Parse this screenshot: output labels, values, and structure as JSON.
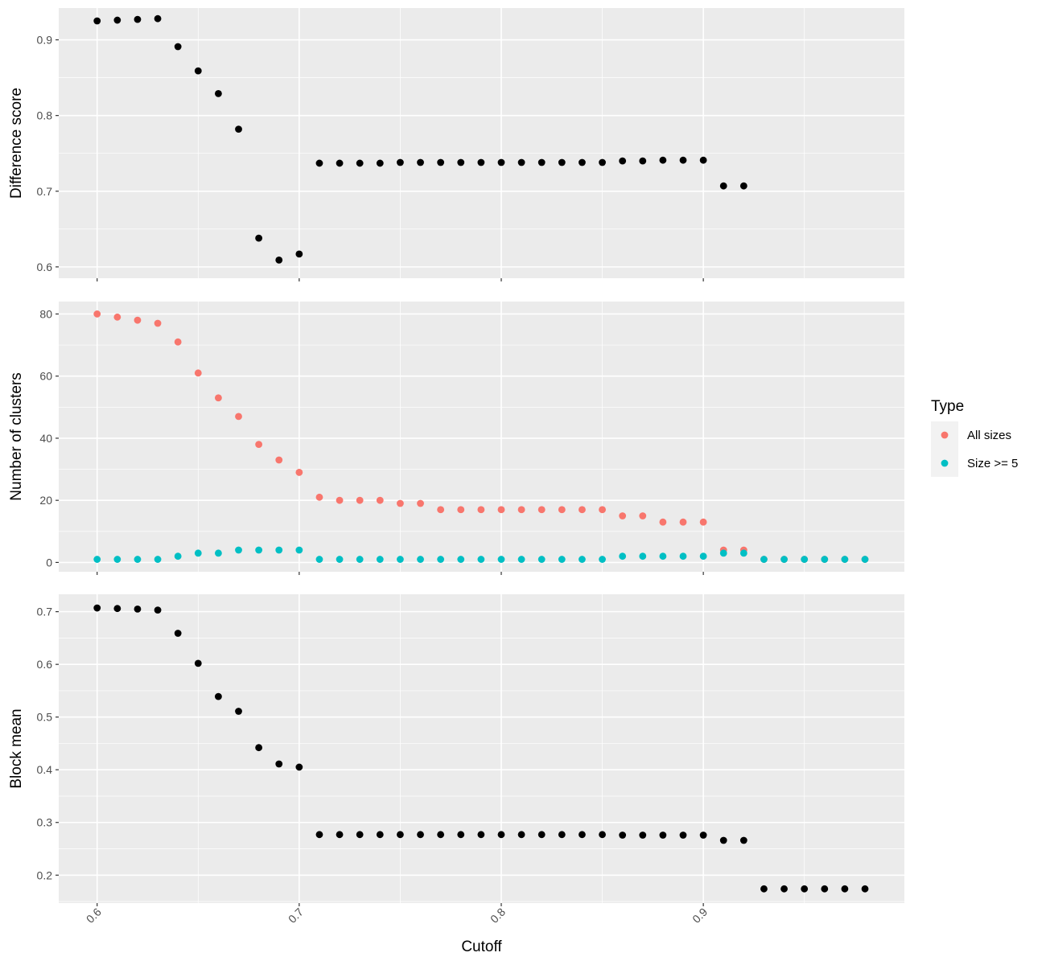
{
  "chart_data": {
    "type": "scatter",
    "xlabel": "Cutoff",
    "x_ticks": [
      "0.6",
      "0.7",
      "0.8",
      "0.9"
    ],
    "x_tick_values": [
      0.6,
      0.7,
      0.8,
      0.9
    ],
    "xlim": [
      0.581,
      0.9995
    ],
    "background": "#ebebeb",
    "grid": true,
    "legend": {
      "title": "Type",
      "placement": "right",
      "entries": [
        {
          "label": "All sizes",
          "color": "#f8766d"
        },
        {
          "label": "Size >= 5",
          "color": "#00bfc4"
        }
      ]
    },
    "panels": [
      {
        "ylabel": "Difference score",
        "ylim": [
          0.585,
          0.942
        ],
        "y_ticks": [
          "0.6",
          "0.7",
          "0.8",
          "0.9"
        ],
        "y_tick_values": [
          0.6,
          0.7,
          0.8,
          0.9
        ],
        "series": [
          {
            "color": "#000000",
            "x": [
              0.6,
              0.61,
              0.62,
              0.63,
              0.64,
              0.65,
              0.66,
              0.67,
              0.68,
              0.69,
              0.7,
              0.71,
              0.72,
              0.73,
              0.74,
              0.75,
              0.76,
              0.77,
              0.78,
              0.79,
              0.8,
              0.81,
              0.82,
              0.83,
              0.84,
              0.85,
              0.86,
              0.87,
              0.88,
              0.89,
              0.9,
              0.91,
              0.92
            ],
            "y": [
              0.925,
              0.926,
              0.927,
              0.928,
              0.891,
              0.859,
              0.829,
              0.782,
              0.638,
              0.609,
              0.617,
              0.737,
              0.737,
              0.737,
              0.737,
              0.738,
              0.738,
              0.738,
              0.738,
              0.738,
              0.738,
              0.738,
              0.738,
              0.738,
              0.738,
              0.738,
              0.74,
              0.74,
              0.741,
              0.741,
              0.741,
              0.707,
              0.707
            ]
          }
        ]
      },
      {
        "ylabel": "Number of clusters",
        "ylim": [
          -3,
          84
        ],
        "y_ticks": [
          "0",
          "20",
          "40",
          "60",
          "80"
        ],
        "y_tick_values": [
          0,
          20,
          40,
          60,
          80
        ],
        "series": [
          {
            "name": "All sizes",
            "color": "#f8766d",
            "x": [
              0.6,
              0.61,
              0.62,
              0.63,
              0.64,
              0.65,
              0.66,
              0.67,
              0.68,
              0.69,
              0.7,
              0.71,
              0.72,
              0.73,
              0.74,
              0.75,
              0.76,
              0.77,
              0.78,
              0.79,
              0.8,
              0.81,
              0.82,
              0.83,
              0.84,
              0.85,
              0.86,
              0.87,
              0.88,
              0.89,
              0.9,
              0.91,
              0.92,
              0.93,
              0.94,
              0.95,
              0.96,
              0.97,
              0.98
            ],
            "y": [
              80,
              79,
              78,
              77,
              71,
              61,
              53,
              47,
              38,
              33,
              29,
              21,
              20,
              20,
              20,
              19,
              19,
              17,
              17,
              17,
              17,
              17,
              17,
              17,
              17,
              17,
              15,
              15,
              13,
              13,
              13,
              4,
              4,
              1,
              1,
              1,
              1,
              1,
              1
            ]
          },
          {
            "name": "Size >= 5",
            "color": "#00bfc4",
            "x": [
              0.6,
              0.61,
              0.62,
              0.63,
              0.64,
              0.65,
              0.66,
              0.67,
              0.68,
              0.69,
              0.7,
              0.71,
              0.72,
              0.73,
              0.74,
              0.75,
              0.76,
              0.77,
              0.78,
              0.79,
              0.8,
              0.81,
              0.82,
              0.83,
              0.84,
              0.85,
              0.86,
              0.87,
              0.88,
              0.89,
              0.9,
              0.91,
              0.92,
              0.93,
              0.94,
              0.95,
              0.96,
              0.97,
              0.98
            ],
            "y": [
              1,
              1,
              1,
              1,
              2,
              3,
              3,
              4,
              4,
              4,
              4,
              1,
              1,
              1,
              1,
              1,
              1,
              1,
              1,
              1,
              1,
              1,
              1,
              1,
              1,
              1,
              2,
              2,
              2,
              2,
              2,
              3,
              3,
              1,
              1,
              1,
              1,
              1,
              1
            ]
          }
        ]
      },
      {
        "ylabel": "Block mean",
        "ylim": [
          0.147,
          0.733
        ],
        "y_ticks": [
          "0.2",
          "0.3",
          "0.4",
          "0.5",
          "0.6",
          "0.7"
        ],
        "y_tick_values": [
          0.2,
          0.3,
          0.4,
          0.5,
          0.6,
          0.7
        ],
        "series": [
          {
            "color": "#000000",
            "x": [
              0.6,
              0.61,
              0.62,
              0.63,
              0.64,
              0.65,
              0.66,
              0.67,
              0.68,
              0.69,
              0.7,
              0.71,
              0.72,
              0.73,
              0.74,
              0.75,
              0.76,
              0.77,
              0.78,
              0.79,
              0.8,
              0.81,
              0.82,
              0.83,
              0.84,
              0.85,
              0.86,
              0.87,
              0.88,
              0.89,
              0.9,
              0.91,
              0.92,
              0.93,
              0.94,
              0.95,
              0.96,
              0.97,
              0.98
            ],
            "y": [
              0.707,
              0.706,
              0.705,
              0.703,
              0.659,
              0.602,
              0.539,
              0.511,
              0.442,
              0.411,
              0.405,
              0.277,
              0.277,
              0.277,
              0.277,
              0.277,
              0.277,
              0.277,
              0.277,
              0.277,
              0.277,
              0.277,
              0.277,
              0.277,
              0.277,
              0.277,
              0.276,
              0.276,
              0.276,
              0.276,
              0.276,
              0.266,
              0.266,
              0.174,
              0.174,
              0.174,
              0.174,
              0.174,
              0.174
            ]
          }
        ]
      }
    ]
  }
}
